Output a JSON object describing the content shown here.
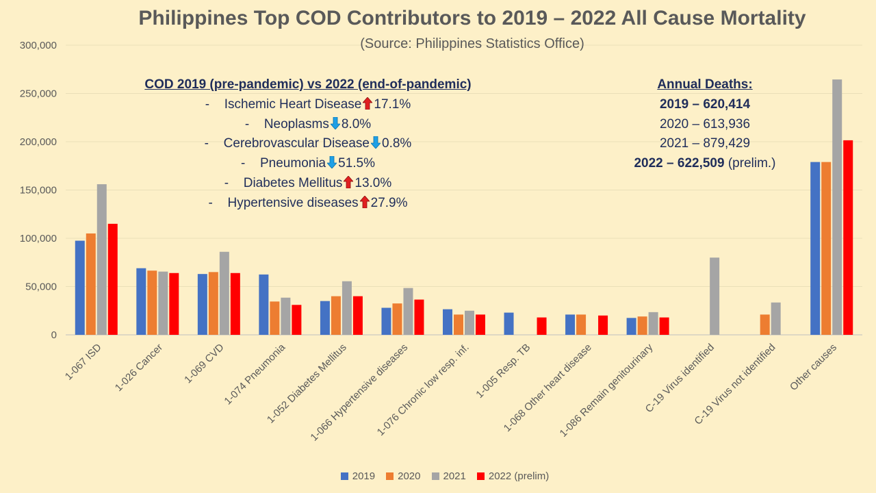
{
  "chart_data": {
    "type": "bar",
    "title": "Philippines Top COD Contributors to 2019 – 2022 All Cause Mortality",
    "subtitle": "(Source: Philippines Statistics Office)",
    "categories": [
      "1-067  ISD",
      "1-026  Cancer",
      "1-069  CVD",
      "1-074  Pneumonia",
      "1-052  Diabetes Mellitus",
      "1-066  Hypertensive diseases",
      "1-076  Chronic low resp. inf.",
      "1-005  Resp. TB",
      "1-068  Other heart disease",
      "1-086  Remain genitourinary",
      "C-19 Virus identified",
      "C-19 Virus not identified",
      "Other causes"
    ],
    "series": [
      {
        "name": "2019",
        "color": "#4472c4",
        "values": [
          97500,
          69000,
          63000,
          62500,
          35000,
          28000,
          26500,
          23000,
          21000,
          17500,
          0,
          0,
          179000
        ]
      },
      {
        "name": "2020",
        "color": "#ed7d31",
        "values": [
          105000,
          66500,
          65000,
          34500,
          40000,
          32500,
          21000,
          0,
          21000,
          19000,
          0,
          21000,
          179000
        ]
      },
      {
        "name": "2021",
        "color": "#a5a5a5",
        "values": [
          156000,
          65500,
          86000,
          38500,
          55500,
          48500,
          25000,
          0,
          0,
          23500,
          80000,
          33500,
          264500
        ]
      },
      {
        "name": "2022 (prelim)",
        "color": "#ff0000",
        "values": [
          115000,
          64000,
          64000,
          31000,
          40000,
          36500,
          21000,
          18000,
          20000,
          18000,
          0,
          0,
          201500
        ]
      }
    ],
    "yticks": [
      "0",
      "50,000",
      "100,000",
      "150,000",
      "200,000",
      "250,000",
      "300,000"
    ],
    "ylim": [
      0,
      300000
    ],
    "grid": true,
    "legend_position": "bottom"
  },
  "cod_comparison": {
    "heading": "COD 2019 (pre-pandemic) vs 2022 (end-of-pandemic)",
    "items": [
      {
        "dash": "-",
        "label": "Ischemic Heart Disease",
        "direction": "up",
        "change": "17.1%"
      },
      {
        "dash": "-",
        "label": "Neoplasms",
        "direction": "down",
        "change": "8.0%"
      },
      {
        "dash": "-",
        "label": "Cerebrovascular Disease",
        "direction": "down",
        "change": "0.8%"
      },
      {
        "dash": "-",
        "label": "Pneumonia",
        "direction": "down",
        "change": "51.5%"
      },
      {
        "dash": "-",
        "label": "Diabetes Mellitus",
        "direction": "up",
        "change": "13.0%"
      },
      {
        "dash": "-",
        "label": "Hypertensive diseases",
        "direction": "up",
        "change": "27.9%"
      }
    ]
  },
  "annual_deaths": {
    "heading": "Annual Deaths:",
    "rows": [
      {
        "text": "2019 – 620,414",
        "note": "",
        "bold": true
      },
      {
        "text": "2020 – 613,936",
        "note": "",
        "bold": false
      },
      {
        "text": "2021 – 879,429",
        "note": "",
        "bold": false
      },
      {
        "text": "2022 – 622,509",
        "note": " (prelim.)",
        "bold": true
      }
    ]
  },
  "colors": {
    "background": "#fdf0c8",
    "arrow_up": "#e02020",
    "arrow_down": "#1ea0e6",
    "text_dark": "#1f2d5a"
  }
}
